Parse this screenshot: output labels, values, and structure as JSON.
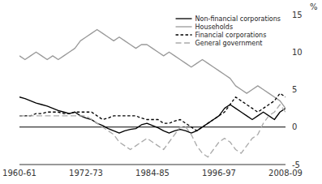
{
  "chart_data": {
    "type": "line",
    "title": "",
    "y_label": "%",
    "categories": [
      "1960-61",
      null,
      null,
      null,
      null,
      null,
      null,
      null,
      null,
      null,
      null,
      null,
      "1972-73",
      null,
      null,
      null,
      null,
      null,
      null,
      null,
      null,
      null,
      null,
      null,
      "1984-85",
      null,
      null,
      null,
      null,
      null,
      null,
      null,
      null,
      null,
      null,
      null,
      "1996-97",
      null,
      null,
      null,
      null,
      null,
      null,
      null,
      null,
      null,
      null,
      null,
      "2008-09"
    ],
    "ylim": [
      -5,
      15
    ],
    "yticks": [
      -5,
      0,
      5,
      10,
      15
    ],
    "grid": false,
    "legend": "upper right",
    "series": [
      {
        "name": "Non-financial corporations",
        "color": "#000000",
        "line_style": "solid",
        "values": [
          4.0,
          3.8,
          3.5,
          3.2,
          3.0,
          2.8,
          2.5,
          2.2,
          2.0,
          1.8,
          2.0,
          1.5,
          1.2,
          1.0,
          0.5,
          0.2,
          -0.2,
          -0.5,
          -0.8,
          -0.5,
          -0.3,
          -0.2,
          0.3,
          0.5,
          0.2,
          -0.1,
          -0.5,
          -0.8,
          -0.5,
          -0.3,
          -0.5,
          -0.8,
          -0.5,
          0.0,
          0.5,
          1.0,
          1.5,
          2.5,
          3.0,
          2.5,
          2.0,
          1.5,
          1.0,
          1.5,
          2.0,
          1.5,
          1.0,
          2.0,
          2.5
        ]
      },
      {
        "name": "Households",
        "color": "#999999",
        "line_style": "solid",
        "values": [
          9.5,
          9.0,
          9.5,
          10.0,
          9.5,
          9.0,
          9.5,
          9.0,
          9.5,
          10.0,
          10.5,
          11.5,
          12.0,
          12.5,
          13.0,
          12.5,
          12.0,
          11.5,
          12.0,
          11.5,
          11.0,
          10.5,
          11.0,
          11.0,
          10.5,
          10.0,
          9.5,
          10.0,
          9.5,
          9.0,
          8.5,
          8.0,
          8.5,
          9.0,
          8.5,
          8.0,
          7.5,
          7.0,
          6.5,
          5.5,
          5.0,
          4.5,
          5.0,
          5.5,
          5.0,
          4.5,
          4.0,
          3.5,
          2.5
        ]
      },
      {
        "name": "Financial corporations",
        "color": "#000000",
        "line_style": "short-dashed",
        "values": [
          1.5,
          1.5,
          1.5,
          1.8,
          1.8,
          2.0,
          2.0,
          2.0,
          1.8,
          1.8,
          2.0,
          2.0,
          2.0,
          2.0,
          1.5,
          1.0,
          1.2,
          1.5,
          1.5,
          1.5,
          1.5,
          1.5,
          1.2,
          1.0,
          1.0,
          1.0,
          0.5,
          0.5,
          0.8,
          1.0,
          0.5,
          0.0,
          -0.5,
          0.0,
          0.5,
          1.0,
          1.5,
          2.0,
          3.0,
          4.0,
          3.5,
          3.0,
          2.5,
          2.0,
          2.5,
          3.0,
          3.5,
          4.5,
          4.0
        ]
      },
      {
        "name": "General government",
        "color": "#aaaaaa",
        "line_style": "dashed",
        "values": [
          1.5,
          1.5,
          1.5,
          1.5,
          1.5,
          1.5,
          1.5,
          1.5,
          1.5,
          1.5,
          1.5,
          1.5,
          1.5,
          1.0,
          0.5,
          0.0,
          -0.5,
          -1.0,
          -2.0,
          -2.5,
          -3.0,
          -2.5,
          -2.0,
          -1.5,
          -2.0,
          -2.5,
          -3.0,
          -2.0,
          -1.0,
          0.0,
          0.0,
          -1.0,
          -2.5,
          -3.5,
          -4.0,
          -3.0,
          -2.0,
          -1.5,
          -2.0,
          -3.0,
          -3.5,
          -2.5,
          -1.5,
          -1.0,
          0.5,
          1.5,
          2.0,
          3.0,
          2.0
        ]
      }
    ]
  }
}
